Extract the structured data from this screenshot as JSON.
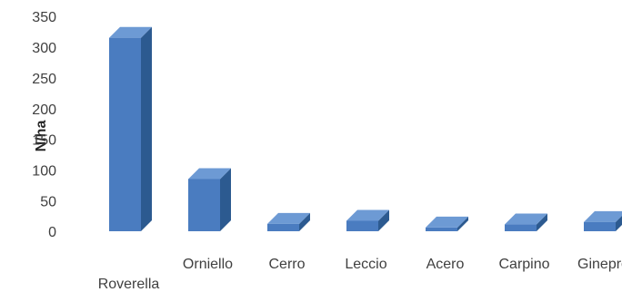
{
  "chart_data": {
    "type": "bar",
    "title": "",
    "xlabel": "",
    "ylabel": "N/ha",
    "categories": [
      "Roverella",
      "Orniello",
      "Cerro",
      "Leccio",
      "Acero",
      "Carpino",
      "Ginepro"
    ],
    "values": [
      315,
      85,
      12,
      17,
      6,
      11,
      15
    ],
    "ylim": [
      0,
      350
    ],
    "yticks": [
      0,
      50,
      100,
      150,
      200,
      250,
      300,
      350
    ],
    "grid": false,
    "legend": "none",
    "style": "3d-column",
    "colors": {
      "front": "#4a7cc0",
      "side": "#2c5a90",
      "top": "#6d9ad4",
      "text": "#404040"
    }
  }
}
